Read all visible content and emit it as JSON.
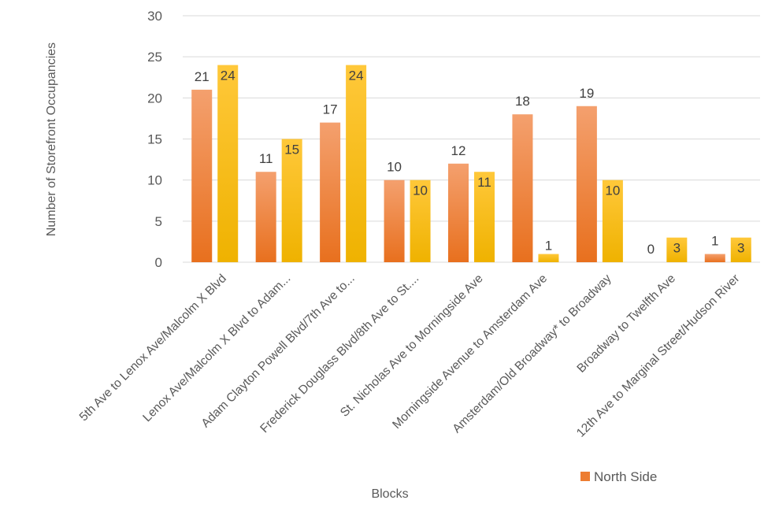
{
  "chart_data": {
    "type": "bar",
    "categories": [
      "5th Ave to Lenox Ave/Malcolm X Blvd",
      "Lenox Ave/Malcolm X Blvd to Adam...",
      "Adam Clayton Powell Blvd/7th Ave to...",
      "Frederick Douglass Blvd/8th Ave to St....",
      "St. Nicholas Ave to Morningside Ave",
      "Morningside Avenue to Amsterdam Ave",
      "Amsterdam/Old Broadway* to Broadway",
      "Broadway to Twelfth Ave",
      "12th Ave to Marginal Street/Hudson River"
    ],
    "series": [
      {
        "name": "North Side",
        "values": [
          21,
          11,
          17,
          10,
          12,
          18,
          19,
          0,
          1
        ],
        "color": "#ED7D31"
      },
      {
        "name": "",
        "values": [
          24,
          15,
          24,
          10,
          11,
          1,
          10,
          3,
          3
        ],
        "color": "#FFC000"
      }
    ],
    "title": "",
    "xlabel": "Blocks",
    "ylabel": "Number of Storefront Occupancies",
    "ylim": [
      0,
      30
    ],
    "yticks": [
      0,
      5,
      10,
      15,
      20,
      25,
      30
    ],
    "grid": true,
    "legend": "bottom-right"
  }
}
